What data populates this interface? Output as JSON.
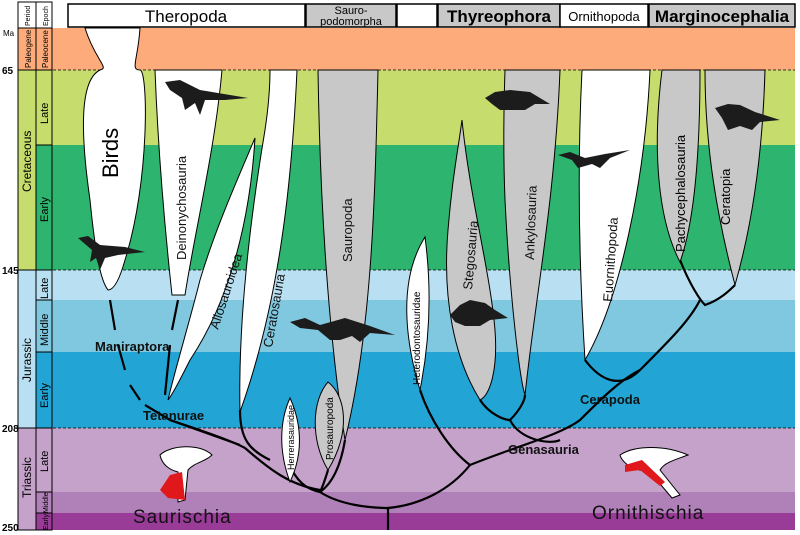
{
  "axis": {
    "unit": "Ma",
    "ticks": [
      "65",
      "145",
      "208",
      "250"
    ],
    "period_header": "Period",
    "epoch_header": "Epoch"
  },
  "periods": [
    {
      "name": "Paleogene",
      "color": "#fdab7a"
    },
    {
      "name": "Cretaceous",
      "color": "#c6dc6c"
    },
    {
      "name": "Jurassic",
      "color": "#b9e0f2"
    },
    {
      "name": "Triassic",
      "color": "#c4a2ca"
    }
  ],
  "epochs": [
    {
      "name": "Paleocene",
      "color": "#fdab7a"
    },
    {
      "name": "Late",
      "color": "#c6dc6c"
    },
    {
      "name": "Early",
      "color": "#2db46e"
    },
    {
      "name": "Late",
      "color": "#b9e0f2"
    },
    {
      "name": "Middle",
      "color": "#80c8e0"
    },
    {
      "name": "Early",
      "color": "#22a5d5"
    },
    {
      "name": "Late",
      "color": "#c4a2ca"
    },
    {
      "name": "Middle",
      "color": "#b080b8"
    },
    {
      "name": "Early",
      "color": "#983c98"
    }
  ],
  "header": {
    "theropoda": "Theropoda",
    "sauropodomorpha_1": "Sauro-",
    "sauropodomorpha_2": "podomorpha",
    "thyreophora": "Thyreophora",
    "ornithopoda": "Ornithopoda",
    "marginocephalia": "Marginocephalia"
  },
  "clades": {
    "birds": "Birds",
    "deinonychosauria": "Deinonychosauria",
    "allosauroidea": "Allosauroidea",
    "ceratosauria": "Ceratosauria",
    "sauropoda": "Sauropoda",
    "herrerasauridae": "Herrerasauridae",
    "prosauropoda": "Prosauropoda",
    "heterodontosauridae": "Heterodontosauridae",
    "stegosauria": "Stegosauria",
    "ankylosauria": "Ankylosauria",
    "euornithopoda": "Euornithopoda",
    "pachycephalosauria": "Pachycephalosauria",
    "ceratopia": "Ceratopia"
  },
  "nodes": {
    "maniraptora": "Maniraptora",
    "tetanurae": "Tetanurae",
    "cerapoda": "Cerapoda",
    "genasauria": "Genasauria",
    "saurischia": "Saurischia",
    "ornithischia": "Ornithischia"
  }
}
